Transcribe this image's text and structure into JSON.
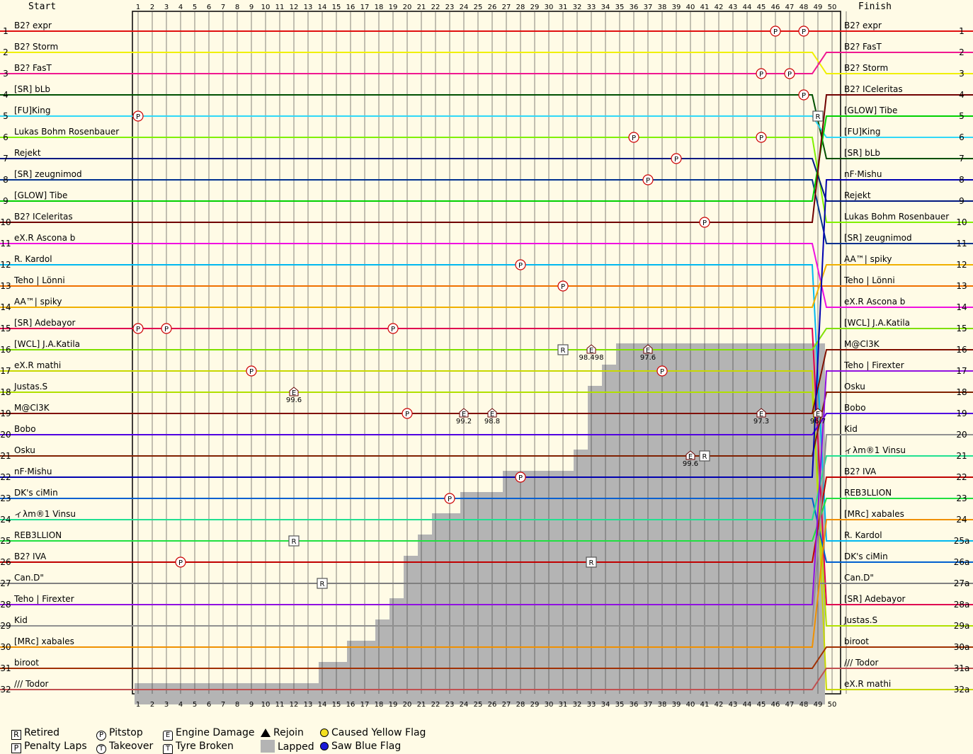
{
  "chart_data": {
    "type": "line",
    "title": "",
    "header": {
      "start_label": "Start",
      "finish_label": "Finish"
    },
    "laps": [
      1,
      2,
      3,
      4,
      5,
      6,
      7,
      8,
      9,
      10,
      11,
      12,
      13,
      14,
      15,
      16,
      17,
      18,
      19,
      20,
      21,
      22,
      23,
      24,
      25,
      26,
      27,
      28,
      29,
      30,
      31,
      32,
      33,
      34,
      35,
      36,
      37,
      38,
      39,
      40,
      41,
      42,
      43,
      44,
      45,
      46,
      47,
      48,
      49,
      50
    ],
    "positions": [
      1,
      2,
      3,
      4,
      5,
      6,
      7,
      8,
      9,
      10,
      11,
      12,
      13,
      14,
      15,
      16,
      17,
      18,
      19,
      20,
      21,
      22,
      23,
      24,
      25,
      26,
      27,
      28,
      29,
      30,
      31,
      32
    ],
    "finish_position_labels": [
      "1",
      "2",
      "3",
      "4",
      "5",
      "6",
      "7",
      "8",
      "9",
      "10",
      "11",
      "12",
      "13",
      "14",
      "15",
      "16",
      "17",
      "18",
      "19",
      "20",
      "21",
      "22",
      "23",
      "24",
      "25a",
      "26a",
      "27a",
      "28a",
      "29a",
      "30a",
      "31a",
      "32a"
    ],
    "start_grid": [
      {
        "name": "B2? expr",
        "color": "#e01010"
      },
      {
        "name": "B2? Storm",
        "color": "#f0f000"
      },
      {
        "name": "B2? FasT",
        "color": "#f01890"
      },
      {
        "name": "[SR] bLb",
        "color": "#005000"
      },
      {
        "name": "[FU]King",
        "color": "#30d8f8"
      },
      {
        "name": "Lukas Bohm Rosenbauer",
        "color": "#80f000"
      },
      {
        "name": "Rejekt",
        "color": "#001880"
      },
      {
        "name": "[SR] zeugnimod",
        "color": "#003090"
      },
      {
        "name": "[GLOW] Tibe",
        "color": "#00d000"
      },
      {
        "name": "B2? ICeleritas",
        "color": "#700000"
      },
      {
        "name": "eX.R Ascona b",
        "color": "#f010e0"
      },
      {
        "name": "R. Kardol",
        "color": "#00b8f0"
      },
      {
        "name": "Teho | Lönni",
        "color": "#f07000"
      },
      {
        "name": "AA™| spiky",
        "color": "#f0b000"
      },
      {
        "name": "[SR] Adebayor",
        "color": "#e00050"
      },
      {
        "name": "[WCL] J.A.Katila",
        "color": "#80e000"
      },
      {
        "name": "eX.R mathi",
        "color": "#c8d800"
      },
      {
        "name": "Justas.S",
        "color": "#b0e000"
      },
      {
        "name": "M@Cl3K",
        "color": "#801000"
      },
      {
        "name": "Bobo",
        "color": "#5000e0"
      },
      {
        "name": "Osku",
        "color": "#802000"
      },
      {
        "name": "nF·Mishu",
        "color": "#0000b0"
      },
      {
        "name": "DK's ciMin",
        "color": "#0060d0"
      },
      {
        "name": "ィλm®1 Vinsu",
        "color": "#20e090"
      },
      {
        "name": "REB3LLION",
        "color": "#20e040"
      },
      {
        "name": "B2? IVA",
        "color": "#c00000"
      },
      {
        "name": "Can.D\"",
        "color": "#808080"
      },
      {
        "name": "Teho | Firexter",
        "color": "#9010e0"
      },
      {
        "name": "Kid",
        "color": "#909090"
      },
      {
        "name": "[MRc] xabales",
        "color": "#f09000"
      },
      {
        "name": "biroot",
        "color": "#a03000"
      },
      {
        "name": "/// Todor",
        "color": "#c05050"
      }
    ],
    "finish_order": [
      {
        "name": "B2? expr",
        "color": "#e01010"
      },
      {
        "name": "B2? FasT",
        "color": "#f01890"
      },
      {
        "name": "B2? Storm",
        "color": "#f0f000"
      },
      {
        "name": "B2? ICeleritas",
        "color": "#700000"
      },
      {
        "name": "[GLOW] Tibe",
        "color": "#00d000"
      },
      {
        "name": "[FU]King",
        "color": "#30d8f8"
      },
      {
        "name": "[SR] bLb",
        "color": "#005000"
      },
      {
        "name": "nF·Mishu",
        "color": "#0000b0"
      },
      {
        "name": "Rejekt",
        "color": "#001880"
      },
      {
        "name": "Lukas Bohm Rosenbauer",
        "color": "#80f000"
      },
      {
        "name": "[SR] zeugnimod",
        "color": "#003090"
      },
      {
        "name": "AA™| spiky",
        "color": "#f0b000"
      },
      {
        "name": "Teho | Lönni",
        "color": "#f07000"
      },
      {
        "name": "eX.R Ascona b",
        "color": "#f010e0"
      },
      {
        "name": "[WCL] J.A.Katila",
        "color": "#80e000"
      },
      {
        "name": "M@Cl3K",
        "color": "#801000"
      },
      {
        "name": "Teho | Firexter",
        "color": "#9010e0"
      },
      {
        "name": "Osku",
        "color": "#802000"
      },
      {
        "name": "Bobo",
        "color": "#5000e0"
      },
      {
        "name": "Kid",
        "color": "#909090"
      },
      {
        "name": "ィλm®1 Vinsu",
        "color": "#20e090"
      },
      {
        "name": "B2? IVA",
        "color": "#c00000"
      },
      {
        "name": "REB3LLION",
        "color": "#20e040"
      },
      {
        "name": "[MRc] xabales",
        "color": "#f09000"
      },
      {
        "name": "R. Kardol",
        "color": "#00b8f0"
      },
      {
        "name": "DK's ciMin",
        "color": "#0060d0"
      },
      {
        "name": "Can.D\"",
        "color": "#808080"
      },
      {
        "name": "[SR] Adebayor",
        "color": "#e00050"
      },
      {
        "name": "Justas.S",
        "color": "#b0e000"
      },
      {
        "name": "biroot",
        "color": "#a03000"
      },
      {
        "name": "/// Todor",
        "color": "#c05050"
      },
      {
        "name": "eX.R mathi",
        "color": "#c8d800"
      }
    ],
    "lapped_region_start_lap": [
      {
        "position": 32,
        "from_lap": 1
      },
      {
        "position": 31,
        "from_lap": 14
      },
      {
        "position": 30,
        "from_lap": 16
      },
      {
        "position": 29,
        "from_lap": 18
      },
      {
        "position": 28,
        "from_lap": 19
      },
      {
        "position": 27,
        "from_lap": 20
      },
      {
        "position": 26,
        "from_lap": 20
      },
      {
        "position": 25,
        "from_lap": 21
      },
      {
        "position": 24,
        "from_lap": 22
      },
      {
        "position": 23,
        "from_lap": 24
      },
      {
        "position": 22,
        "from_lap": 27
      },
      {
        "position": 21,
        "from_lap": 32
      },
      {
        "position": 20,
        "from_lap": 33
      },
      {
        "position": 19,
        "from_lap": 33
      },
      {
        "position": 18,
        "from_lap": 33
      },
      {
        "position": 17,
        "from_lap": 34
      },
      {
        "position": 16,
        "from_lap": 35
      }
    ],
    "events": [
      {
        "type": "pitstop",
        "lap": 46,
        "position": 1
      },
      {
        "type": "pitstop",
        "lap": 48,
        "position": 1
      },
      {
        "type": "pitstop",
        "lap": 47,
        "position": 3
      },
      {
        "type": "pitstop",
        "lap": 45,
        "position": 3
      },
      {
        "type": "pitstop",
        "lap": 48,
        "position": 4
      },
      {
        "type": "pitstop",
        "lap": 1,
        "position": 5
      },
      {
        "type": "pitstop",
        "lap": 36,
        "position": 6
      },
      {
        "type": "pitstop",
        "lap": 45,
        "position": 6
      },
      {
        "type": "pitstop",
        "lap": 39,
        "position": 7
      },
      {
        "type": "pitstop",
        "lap": 37,
        "position": 8
      },
      {
        "type": "pitstop",
        "lap": 41,
        "position": 10
      },
      {
        "type": "pitstop",
        "lap": 28,
        "position": 12
      },
      {
        "type": "pitstop",
        "lap": 31,
        "position": 13
      },
      {
        "type": "pitstop",
        "lap": 1,
        "position": 15
      },
      {
        "type": "pitstop",
        "lap": 3,
        "position": 15
      },
      {
        "type": "pitstop",
        "lap": 19,
        "position": 15
      },
      {
        "type": "pitstop",
        "lap": 9,
        "position": 17
      },
      {
        "type": "pitstop",
        "lap": 38,
        "position": 17
      },
      {
        "type": "pitstop",
        "lap": 20,
        "position": 19
      },
      {
        "type": "pitstop",
        "lap": 28,
        "position": 22
      },
      {
        "type": "pitstop",
        "lap": 23,
        "position": 23
      },
      {
        "type": "pitstop",
        "lap": 4,
        "position": 26
      },
      {
        "type": "retired",
        "lap": 12,
        "position": 25
      },
      {
        "type": "retired",
        "lap": 14,
        "position": 27
      },
      {
        "type": "retired",
        "lap": 33,
        "position": 26
      },
      {
        "type": "retired",
        "lap": 31,
        "position": 16
      },
      {
        "type": "retired",
        "lap": 41,
        "position": 21
      },
      {
        "type": "retired",
        "lap": 49,
        "position": 5
      },
      {
        "type": "engine_damage",
        "lap": 12,
        "position": 18,
        "label": "99.6"
      },
      {
        "type": "engine_damage",
        "lap": 24,
        "position": 19,
        "label": "99.2"
      },
      {
        "type": "engine_damage",
        "lap": 26,
        "position": 19,
        "label": "98.8"
      },
      {
        "type": "engine_damage",
        "lap": 33,
        "position": 16,
        "label": "98.498"
      },
      {
        "type": "engine_damage",
        "lap": 37,
        "position": 16,
        "label": "97.6"
      },
      {
        "type": "engine_damage",
        "lap": 40,
        "position": 21,
        "label": "99.6"
      },
      {
        "type": "engine_damage",
        "lap": 45,
        "position": 19,
        "label": "97.3"
      },
      {
        "type": "engine_damage",
        "lap": 49,
        "position": 19,
        "label": "96.7"
      }
    ]
  },
  "legend": {
    "retired": {
      "glyph": "R",
      "label": "Retired"
    },
    "penalty": {
      "glyph": "P",
      "label": "Penalty Laps"
    },
    "pitstop": {
      "glyph": "P",
      "label": "Pitstop"
    },
    "takeover": {
      "glyph": "T",
      "label": "Takeover"
    },
    "engine": {
      "glyph": "E",
      "label": "Engine Damage"
    },
    "tyre": {
      "glyph": "T",
      "label": "Tyre Broken"
    },
    "rejoin": {
      "label": "Rejoin"
    },
    "lapped": {
      "label": "Lapped"
    },
    "yellow": {
      "label": "Caused Yellow Flag",
      "color": "#f4e01e"
    },
    "blue": {
      "label": "Saw Blue Flag",
      "color": "#1a1ad8"
    }
  }
}
